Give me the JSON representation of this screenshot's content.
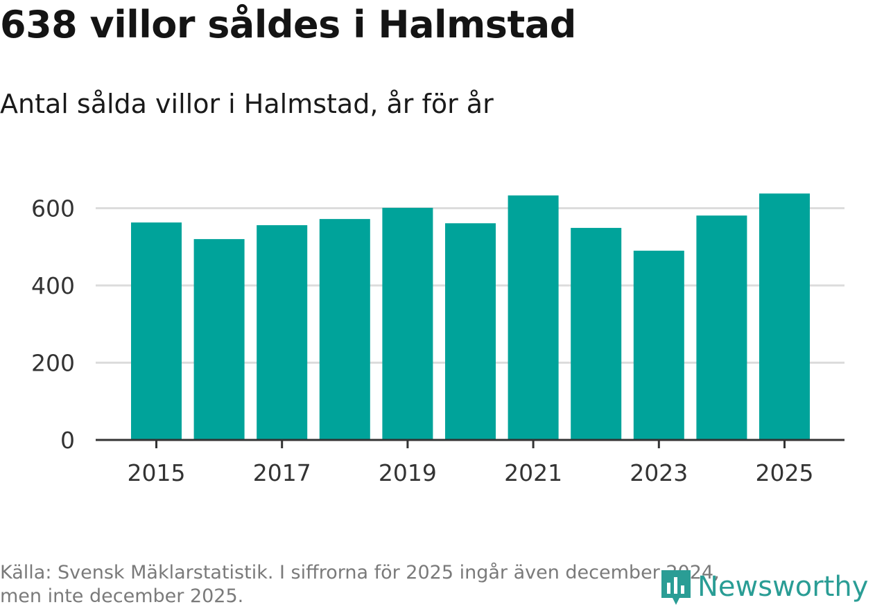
{
  "header": {
    "title": "638 villor såldes i Halmstad",
    "subtitle": "Antal sålda villor i Halmstad, år för år"
  },
  "footer": {
    "source_line_1": "Källa: Svensk Mäklarstatistik. I siffrorna för 2025 ingår även december 2024,",
    "source_line_2": "men inte december 2025."
  },
  "logo": {
    "text": "Newsworthy"
  },
  "colors": {
    "bar": "#00a39a",
    "grid": "#dcdcdc",
    "axis": "#333333",
    "logo": "#2a9d95"
  },
  "chart_data": {
    "type": "bar",
    "title": "638 villor såldes i Halmstad",
    "subtitle": "Antal sålda villor i Halmstad, år för år",
    "categories": [
      "2015",
      "2016",
      "2017",
      "2018",
      "2019",
      "2020",
      "2021",
      "2022",
      "2023",
      "2024",
      "2025"
    ],
    "values": [
      563,
      520,
      556,
      572,
      601,
      561,
      633,
      549,
      490,
      581,
      638
    ],
    "x_tick_labels": [
      "2015",
      "2017",
      "2019",
      "2021",
      "2023",
      "2025"
    ],
    "y_ticks": [
      0,
      200,
      400,
      600
    ],
    "ylim": [
      0,
      640
    ],
    "xlabel": "",
    "ylabel": "",
    "grid": true
  }
}
